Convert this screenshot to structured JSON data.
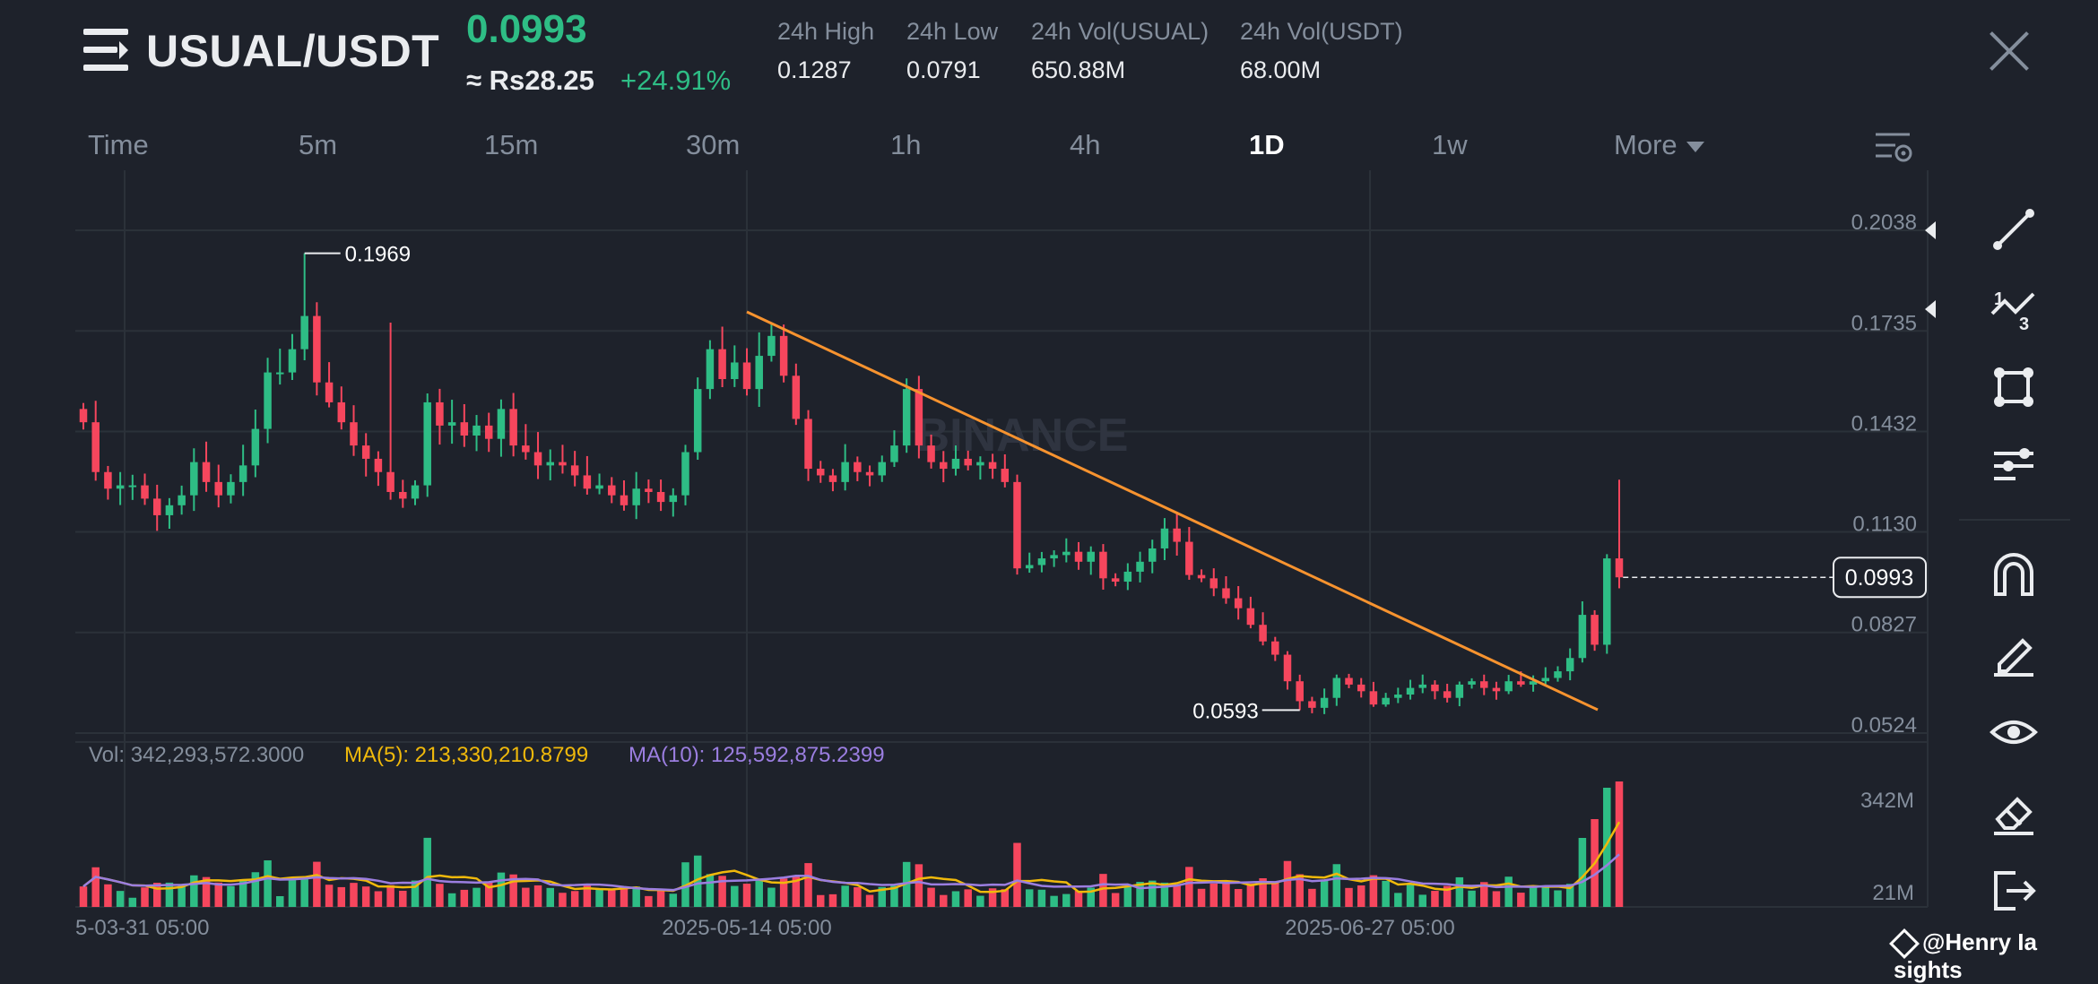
{
  "header": {
    "pair": "USUAL/USDT",
    "last_price": "0.0993",
    "fiat_price": "≈ Rs28.25",
    "change": "+24.91%",
    "stats": [
      {
        "label": "24h High",
        "value": "0.1287"
      },
      {
        "label": "24h Low",
        "value": "0.0791"
      },
      {
        "label": "24h Vol(USUAL)",
        "value": "650.88M"
      },
      {
        "label": "24h Vol(USDT)",
        "value": "68.00M"
      }
    ]
  },
  "timeframes": [
    "Time",
    "5m",
    "15m",
    "30m",
    "1h",
    "4h",
    "1D",
    "1w",
    "More"
  ],
  "active_timeframe": "1D",
  "chart": {
    "watermark": "BINANCE",
    "price_ticks": [
      "0.2038",
      "0.1735",
      "0.1432",
      "0.1130",
      "0.0827",
      "0.0524"
    ],
    "high_label": "0.1969",
    "low_label": "0.0593",
    "current_price_label": "0.0993",
    "volume_ticks": [
      "342M",
      "21M"
    ],
    "date_ticks": [
      "5-03-31 05:00",
      "2025-05-14 05:00",
      "2025-06-27 05:00"
    ],
    "vol_readout": "Vol: 342,293,572.3000",
    "ma5_readout": "MA(5): 213,330,210.8799",
    "ma10_readout": "MA(10): 125,592,875.2399"
  },
  "colors": {
    "bg": "#1e222b",
    "up": "#2ebd85",
    "down": "#f6465d",
    "trendline": "#f7932f",
    "ma5": "#f0b90b",
    "ma10": "#9b7ee0",
    "grid": "#2b3139",
    "axis_text": "#848e9c"
  },
  "sidebar_tools": [
    "trend-line-icon",
    "fib-icon",
    "shape-icon",
    "indicator-icon",
    "magnet-icon",
    "pencil-icon",
    "eye-icon",
    "eraser-icon",
    "exit-icon"
  ],
  "footer": {
    "credit": "@Henry Ia sights"
  }
}
